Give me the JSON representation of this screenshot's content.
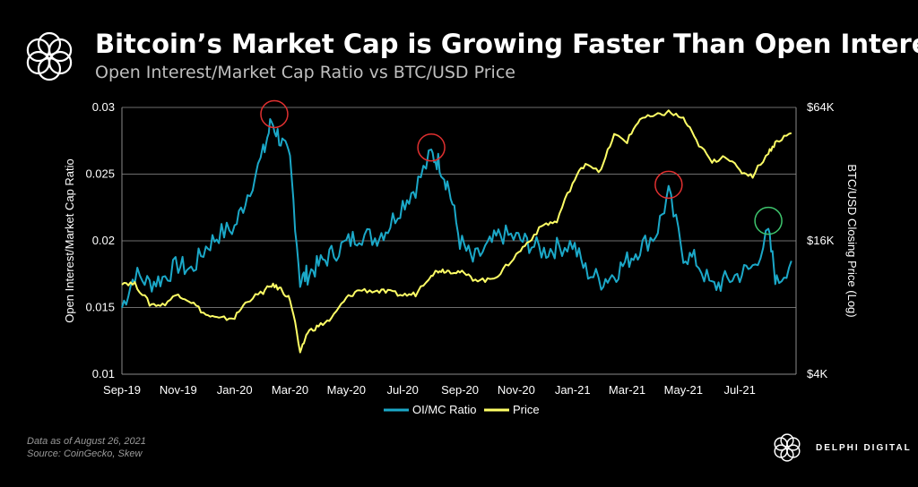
{
  "header": {
    "title": "Bitcoin’s Market Cap is Growing Faster Than Open Interest",
    "subtitle": "Open Interest/Market Cap Ratio vs BTC/USD Price"
  },
  "footer": {
    "note_date": "Data as of August 26, 2021",
    "note_source": "Source:  CoinGecko,  Skew",
    "brand": "DELPHI DIGITAL"
  },
  "icons": {
    "logo": "flower-logo-icon",
    "brand": "flower-logo-icon"
  },
  "chart_data": {
    "type": "line",
    "xlabel": "",
    "ylabel_left": "Open Interest/Market Cap Ratio",
    "ylabel_right": "BTC/USD Closing Price (Log)",
    "x_ticks": [
      "Sep-19",
      "Nov-19",
      "Jan-20",
      "Mar-20",
      "May-20",
      "Jul-20",
      "Sep-20",
      "Nov-20",
      "Jan-21",
      "Mar-21",
      "May-21",
      "Jul-21"
    ],
    "ylim_left": [
      0.01,
      0.03
    ],
    "y_ticks_left": [
      "0.03",
      "0.025",
      "0.02",
      "0.015",
      "0.01"
    ],
    "ylim_right": [
      4000,
      64000
    ],
    "y_scale_right": "log",
    "y_ticks_right": [
      "$64K",
      "$16K",
      "$4K"
    ],
    "grid": true,
    "legend_position": "bottom",
    "series": [
      {
        "name": "OI/MC Ratio",
        "axis": "left",
        "color": "#1ba8c8",
        "x": [
          "2019-09-01",
          "2019-09-15",
          "2019-10-01",
          "2019-10-15",
          "2019-11-01",
          "2019-11-15",
          "2019-12-01",
          "2019-12-15",
          "2020-01-01",
          "2020-01-15",
          "2020-02-01",
          "2020-02-10",
          "2020-02-20",
          "2020-03-01",
          "2020-03-12",
          "2020-03-20",
          "2020-04-01",
          "2020-04-15",
          "2020-05-01",
          "2020-05-15",
          "2020-06-01",
          "2020-06-15",
          "2020-07-01",
          "2020-07-15",
          "2020-08-01",
          "2020-08-10",
          "2020-08-20",
          "2020-09-01",
          "2020-09-15",
          "2020-10-01",
          "2020-10-15",
          "2020-11-01",
          "2020-11-15",
          "2020-12-01",
          "2020-12-15",
          "2021-01-01",
          "2021-01-15",
          "2021-02-01",
          "2021-02-15",
          "2021-03-01",
          "2021-03-15",
          "2021-04-01",
          "2021-04-15",
          "2021-05-01",
          "2021-05-15",
          "2021-06-01",
          "2021-06-15",
          "2021-07-01",
          "2021-07-15",
          "2021-08-01",
          "2021-08-10",
          "2021-08-26"
        ],
        "values": [
          0.015,
          0.0175,
          0.0168,
          0.0172,
          0.0182,
          0.0178,
          0.0195,
          0.0205,
          0.021,
          0.0235,
          0.0265,
          0.029,
          0.0275,
          0.026,
          0.017,
          0.0175,
          0.0182,
          0.019,
          0.0198,
          0.0205,
          0.0202,
          0.021,
          0.0228,
          0.024,
          0.0265,
          0.0258,
          0.024,
          0.02,
          0.0185,
          0.0195,
          0.0205,
          0.0202,
          0.0198,
          0.0192,
          0.0195,
          0.0198,
          0.0178,
          0.017,
          0.0175,
          0.0185,
          0.0195,
          0.0205,
          0.0235,
          0.019,
          0.0185,
          0.0165,
          0.017,
          0.0175,
          0.018,
          0.0205,
          0.0168,
          0.0185
        ]
      },
      {
        "name": "Price",
        "axis": "right",
        "color": "#ffff66",
        "x": [
          "2019-09-01",
          "2019-09-15",
          "2019-10-01",
          "2019-10-15",
          "2019-11-01",
          "2019-11-15",
          "2019-12-01",
          "2019-12-15",
          "2020-01-01",
          "2020-01-15",
          "2020-02-01",
          "2020-02-10",
          "2020-02-20",
          "2020-03-01",
          "2020-03-12",
          "2020-03-20",
          "2020-04-01",
          "2020-04-15",
          "2020-05-01",
          "2020-05-15",
          "2020-06-01",
          "2020-06-15",
          "2020-07-01",
          "2020-07-15",
          "2020-08-01",
          "2020-08-10",
          "2020-08-20",
          "2020-09-01",
          "2020-09-15",
          "2020-10-01",
          "2020-10-15",
          "2020-11-01",
          "2020-11-15",
          "2020-12-01",
          "2020-12-15",
          "2021-01-01",
          "2021-01-15",
          "2021-02-01",
          "2021-02-15",
          "2021-03-01",
          "2021-03-15",
          "2021-04-01",
          "2021-04-15",
          "2021-05-01",
          "2021-05-15",
          "2021-06-01",
          "2021-06-15",
          "2021-07-01",
          "2021-07-15",
          "2021-08-01",
          "2021-08-10",
          "2021-08-26"
        ],
        "values": [
          10400,
          10200,
          8300,
          8200,
          9200,
          8500,
          7400,
          7100,
          7200,
          8600,
          9400,
          10100,
          9700,
          8700,
          4900,
          6200,
          6600,
          7100,
          8800,
          9600,
          9500,
          9400,
          9100,
          9200,
          11300,
          11800,
          11700,
          11600,
          10800,
          10600,
          11400,
          13800,
          16000,
          19000,
          19500,
          29000,
          36000,
          33000,
          48000,
          45000,
          57000,
          58500,
          61000,
          57000,
          45000,
          36000,
          39000,
          33000,
          31500,
          40000,
          45000,
          49000
        ]
      }
    ],
    "annotations": [
      {
        "type": "circle",
        "color": "#e03030",
        "x": "2020-02-13",
        "y": 0.0295
      },
      {
        "type": "circle",
        "color": "#e03030",
        "x": "2020-08-01",
        "y": 0.027
      },
      {
        "type": "circle",
        "color": "#e03030",
        "x": "2021-04-15",
        "y": 0.0242
      },
      {
        "type": "circle",
        "color": "#3ec46d",
        "x": "2021-08-01",
        "y": 0.0215
      }
    ]
  }
}
